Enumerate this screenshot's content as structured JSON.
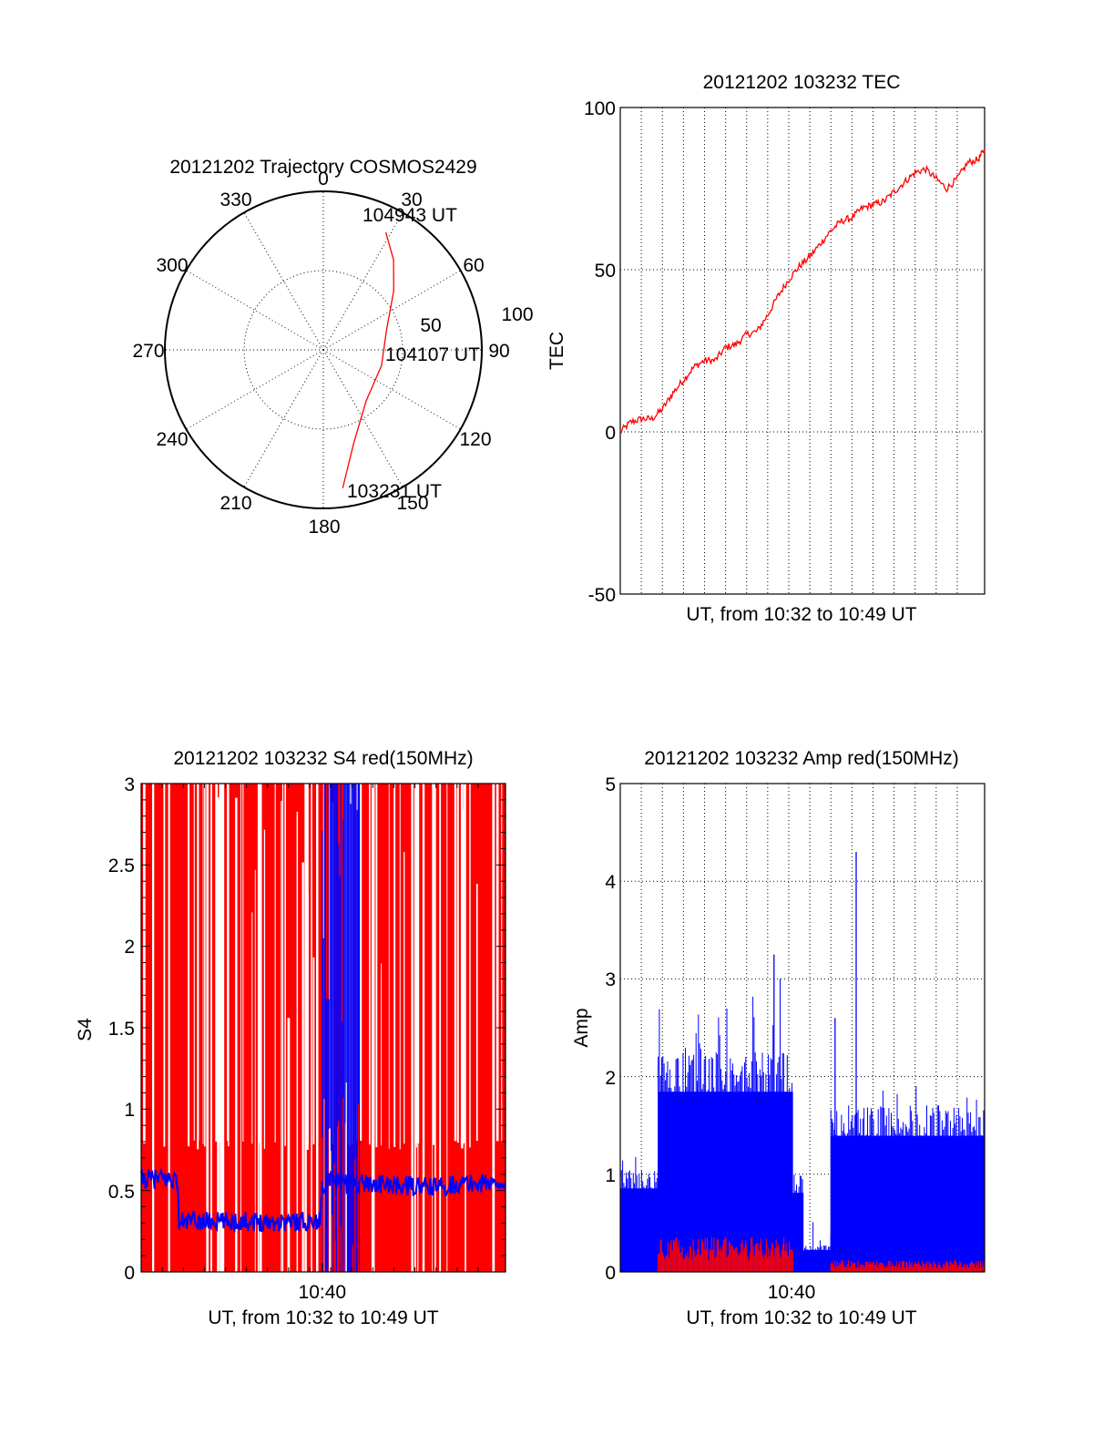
{
  "chart_data": [
    {
      "id": "polar",
      "type": "polar-trajectory",
      "title": "20121202 Trajectory COSMOS2429",
      "angle_labels": [
        "0",
        "30",
        "60",
        "90",
        "120",
        "150",
        "180",
        "210",
        "240",
        "270",
        "300",
        "330"
      ],
      "radial_labels": [
        "50",
        "100"
      ],
      "r_max": 100,
      "trajectory": [
        {
          "az": 172,
          "r": 88
        },
        {
          "az": 162,
          "r": 62
        },
        {
          "az": 140,
          "r": 42
        },
        {
          "az": 105,
          "r": 38
        },
        {
          "az": 72,
          "r": 42
        },
        {
          "az": 50,
          "r": 58
        },
        {
          "az": 38,
          "r": 72
        },
        {
          "az": 28,
          "r": 84
        }
      ],
      "annotations": [
        {
          "text": "104943 UT",
          "az": 28,
          "r": 84
        },
        {
          "text": "104107 UT",
          "az": 105,
          "r": 38
        },
        {
          "text": "103231 UT",
          "az": 172,
          "r": 88
        }
      ],
      "line_color": "#ff0000"
    },
    {
      "id": "tec",
      "type": "line",
      "title": "20121202 103232 TEC",
      "xlabel": "UT, from 10:32 to 10:49 UT",
      "ylabel": "TEC",
      "ylim": [
        -50,
        100
      ],
      "yticks": [
        "100",
        "50",
        "0",
        "-50"
      ],
      "xlim": [
        0,
        17.3
      ],
      "grid": true,
      "series": [
        {
          "color": "#ff0000",
          "x": [
            0,
            0.5,
            1,
            1.5,
            2,
            2.5,
            3,
            3.5,
            4,
            4.5,
            5,
            5.5,
            6,
            6.5,
            7,
            7.5,
            8,
            8.5,
            9,
            9.5,
            10,
            10.5,
            11,
            11.5,
            12,
            12.5,
            13,
            13.5,
            14,
            14.5,
            15,
            15.5,
            16,
            16.5,
            17,
            17.3
          ],
          "y": [
            0,
            3,
            4,
            4,
            7,
            12,
            16,
            20,
            22,
            22,
            26,
            27,
            30,
            31,
            36,
            42,
            47,
            51,
            54,
            58,
            62,
            65,
            66,
            69,
            70,
            71,
            74,
            77,
            80,
            81,
            78,
            75,
            78,
            83,
            84,
            87
          ]
        }
      ]
    },
    {
      "id": "s4",
      "type": "line",
      "title": "20121202 103232 S4 red(150MHz)",
      "xlabel": "UT, from 10:32 to 10:49 UT",
      "ylabel": "S4",
      "xtick_label": "10:40",
      "xtick_value": 8.6,
      "ylim": [
        0,
        3
      ],
      "yticks": [
        "0",
        "0.5",
        "1",
        "1.5",
        "2",
        "2.5",
        "3"
      ],
      "xlim": [
        0,
        17.3
      ],
      "series": [
        {
          "name": "red",
          "color": "#ff0000",
          "style": "spikes",
          "value": 3
        },
        {
          "name": "blue",
          "color": "#0000ff",
          "x": [
            0,
            1.7,
            1.8,
            8.5,
            8.6,
            9.2,
            10.4,
            12,
            14,
            15,
            17.3
          ],
          "y": [
            0.57,
            0.57,
            0.31,
            0.31,
            0.55,
            0.55,
            0.55,
            0.53,
            0.52,
            0.54,
            0.55
          ],
          "burst": {
            "from": 8.6,
            "to": 10.4,
            "max": 3
          }
        }
      ]
    },
    {
      "id": "amp",
      "type": "line",
      "title": "20121202 103232 Amp red(150MHz)",
      "xlabel": "UT, from 10:32 to 10:49 UT",
      "ylabel": "Amp",
      "xtick_label": "10:40",
      "xtick_value": 8.6,
      "ylim": [
        0,
        5
      ],
      "yticks": [
        "0",
        "1",
        "2",
        "3",
        "4",
        "5"
      ],
      "xlim": [
        0,
        17.3
      ],
      "grid": true,
      "series": [
        {
          "name": "blue",
          "color": "#0000ff",
          "segments": [
            {
              "from": 0,
              "to": 1.8,
              "level": 0.95,
              "peak": 1.2
            },
            {
              "from": 1.8,
              "to": 8.2,
              "level": 2.05,
              "peak": 3.0
            },
            {
              "from": 8.2,
              "to": 8.7,
              "level": 0.9,
              "peak": 1.0
            },
            {
              "from": 8.7,
              "to": 10.0,
              "level": 0.25,
              "peak": 0.6
            },
            {
              "from": 10.0,
              "to": 17.3,
              "level": 1.55,
              "peak": 2.1
            }
          ],
          "spikes": [
            {
              "x": 7.3,
              "y": 3.25
            },
            {
              "x": 11.2,
              "y": 4.3
            },
            {
              "x": 10.2,
              "y": 2.6
            }
          ]
        },
        {
          "name": "red",
          "color": "#ff0000",
          "segments": [
            {
              "from": 1.8,
              "to": 8.2,
              "level": 0.3
            },
            {
              "from": 10.0,
              "to": 17.3,
              "level": 0.1
            }
          ]
        }
      ]
    }
  ]
}
